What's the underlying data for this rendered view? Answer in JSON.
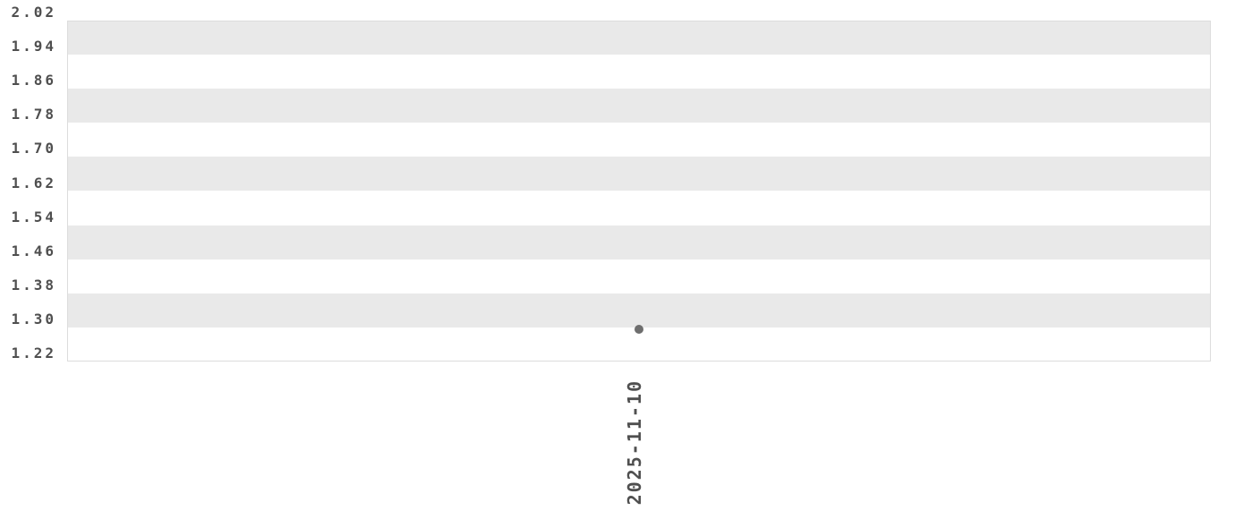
{
  "chart_data": {
    "type": "scatter",
    "title": "",
    "xlabel": "",
    "ylabel": "",
    "x_categories": [
      "2025-11-10"
    ],
    "points": [
      {
        "x": "2025-11-10",
        "y": 1.296
      }
    ],
    "yticks": [
      "2.02",
      "1.94",
      "1.86",
      "1.78",
      "1.70",
      "1.62",
      "1.54",
      "1.46",
      "1.38",
      "1.30",
      "1.22"
    ],
    "ylim": [
      1.22,
      2.02
    ],
    "grid": "alternating-horizontal-bands",
    "legend_position": "none",
    "colors": {
      "background": "#ffffff",
      "band_gray": "#e9e9e9",
      "band_white": "#ffffff",
      "plot_border": "#dcdcdc",
      "tick_text": "#4f4f4f",
      "point": "#6e6e6e"
    }
  }
}
